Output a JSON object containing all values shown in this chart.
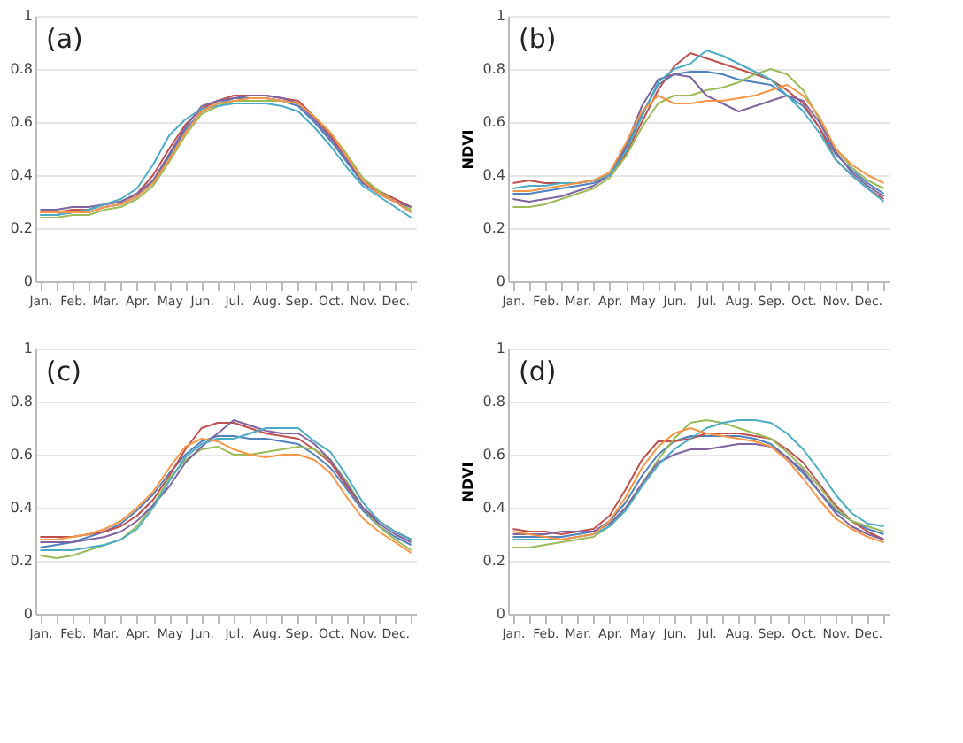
{
  "chart_data": [
    {
      "type": "line",
      "annotations": [
        "(a)"
      ],
      "ylim": [
        0,
        1
      ],
      "yticks": [
        0,
        0.2,
        0.4,
        0.6,
        0.8,
        1
      ],
      "grid": "y",
      "line_style": "solid",
      "categories": [
        "Jan.",
        null,
        "Feb.",
        null,
        "Mar.",
        null,
        "Apr.",
        null,
        "May",
        null,
        "Jun.",
        null,
        "Jul.",
        null,
        "Aug.",
        null,
        "Sep.",
        null,
        "Oct.",
        null,
        "Nov.",
        null,
        "Dec.",
        null
      ],
      "series": [
        {
          "color": "#4f81bd",
          "values": [
            0.25,
            0.25,
            0.26,
            0.26,
            0.28,
            0.29,
            0.32,
            0.38,
            0.47,
            0.57,
            0.64,
            0.67,
            0.69,
            0.69,
            0.69,
            0.68,
            0.66,
            0.6,
            0.53,
            0.45,
            0.37,
            0.33,
            0.3,
            0.26
          ]
        },
        {
          "color": "#c0504d",
          "values": [
            0.26,
            0.26,
            0.27,
            0.27,
            0.29,
            0.3,
            0.33,
            0.4,
            0.5,
            0.59,
            0.65,
            0.68,
            0.7,
            0.7,
            0.7,
            0.69,
            0.68,
            0.62,
            0.55,
            0.46,
            0.38,
            0.34,
            0.31,
            0.28
          ]
        },
        {
          "color": "#9bbb59",
          "values": [
            0.24,
            0.24,
            0.25,
            0.25,
            0.27,
            0.28,
            0.31,
            0.36,
            0.45,
            0.55,
            0.63,
            0.66,
            0.68,
            0.68,
            0.68,
            0.68,
            0.67,
            0.62,
            0.56,
            0.48,
            0.39,
            0.34,
            0.3,
            0.27
          ]
        },
        {
          "color": "#8064a2",
          "values": [
            0.27,
            0.27,
            0.28,
            0.28,
            0.29,
            0.3,
            0.33,
            0.38,
            0.48,
            0.58,
            0.66,
            0.68,
            0.69,
            0.7,
            0.7,
            0.69,
            0.67,
            0.61,
            0.54,
            0.46,
            0.37,
            0.33,
            0.3,
            0.28
          ]
        },
        {
          "color": "#4bacc6",
          "values": [
            0.25,
            0.25,
            0.26,
            0.27,
            0.29,
            0.31,
            0.35,
            0.44,
            0.55,
            0.61,
            0.65,
            0.66,
            0.67,
            0.67,
            0.67,
            0.66,
            0.64,
            0.58,
            0.51,
            0.43,
            0.36,
            0.32,
            0.28,
            0.24
          ]
        },
        {
          "color": "#f79646",
          "values": [
            0.26,
            0.26,
            0.26,
            0.26,
            0.28,
            0.29,
            0.32,
            0.37,
            0.46,
            0.56,
            0.64,
            0.67,
            0.68,
            0.69,
            0.69,
            0.68,
            0.67,
            0.62,
            0.56,
            0.47,
            0.38,
            0.33,
            0.3,
            0.26
          ]
        }
      ]
    },
    {
      "type": "line",
      "annotations": [
        "(b)"
      ],
      "ylabel": "NDVI",
      "ylim": [
        0,
        1
      ],
      "yticks": [
        0,
        0.2,
        0.4,
        0.6,
        0.8,
        1
      ],
      "grid": "y",
      "line_style": "solid",
      "categories": [
        "Jan.",
        null,
        "Feb.",
        null,
        "Mar.",
        null,
        "Apr.",
        null,
        "May",
        null,
        "Jun.",
        null,
        "Jul.",
        null,
        "Aug.",
        null,
        "Sep.",
        null,
        "Oct.",
        null,
        "Nov.",
        null,
        "Dec.",
        null
      ],
      "series": [
        {
          "color": "#4f81bd",
          "values": [
            0.33,
            0.33,
            0.34,
            0.35,
            0.36,
            0.37,
            0.4,
            0.5,
            0.63,
            0.74,
            0.78,
            0.79,
            0.79,
            0.78,
            0.76,
            0.75,
            0.74,
            0.7,
            0.66,
            0.58,
            0.48,
            0.42,
            0.37,
            0.33
          ]
        },
        {
          "color": "#c0504d",
          "values": [
            0.37,
            0.38,
            0.37,
            0.37,
            0.37,
            0.38,
            0.4,
            0.48,
            0.6,
            0.72,
            0.81,
            0.86,
            0.84,
            0.82,
            0.8,
            0.78,
            0.76,
            0.72,
            0.67,
            0.58,
            0.46,
            0.4,
            0.35,
            0.31
          ]
        },
        {
          "color": "#9bbb59",
          "values": [
            0.28,
            0.28,
            0.29,
            0.31,
            0.33,
            0.35,
            0.39,
            0.47,
            0.58,
            0.67,
            0.7,
            0.7,
            0.72,
            0.73,
            0.75,
            0.78,
            0.8,
            0.78,
            0.72,
            0.61,
            0.5,
            0.43,
            0.38,
            0.35
          ]
        },
        {
          "color": "#8064a2",
          "values": [
            0.31,
            0.3,
            0.31,
            0.32,
            0.34,
            0.36,
            0.4,
            0.51,
            0.66,
            0.76,
            0.78,
            0.77,
            0.7,
            0.67,
            0.64,
            0.66,
            0.68,
            0.7,
            0.68,
            0.6,
            0.49,
            0.41,
            0.36,
            0.32
          ]
        },
        {
          "color": "#4bacc6",
          "values": [
            0.35,
            0.36,
            0.36,
            0.37,
            0.37,
            0.38,
            0.4,
            0.49,
            0.62,
            0.75,
            0.8,
            0.82,
            0.87,
            0.85,
            0.82,
            0.79,
            0.76,
            0.7,
            0.64,
            0.56,
            0.46,
            0.4,
            0.35,
            0.3
          ]
        },
        {
          "color": "#f79646",
          "values": [
            0.34,
            0.34,
            0.35,
            0.36,
            0.37,
            0.38,
            0.41,
            0.52,
            0.64,
            0.7,
            0.67,
            0.67,
            0.68,
            0.68,
            0.69,
            0.7,
            0.72,
            0.74,
            0.7,
            0.62,
            0.5,
            0.44,
            0.4,
            0.37
          ]
        }
      ]
    },
    {
      "type": "line",
      "annotations": [
        "(c)"
      ],
      "ylim": [
        0,
        1
      ],
      "yticks": [
        0,
        0.2,
        0.4,
        0.6,
        0.8,
        1
      ],
      "grid": "y",
      "line_style": "solid",
      "categories": [
        "Jan.",
        null,
        "Feb.",
        null,
        "Mar.",
        null,
        "Apr.",
        null,
        "May",
        null,
        "Jun.",
        null,
        "Jul.",
        null,
        "Aug.",
        null,
        "Sep.",
        null,
        "Oct.",
        null,
        "Nov.",
        null,
        "Dec.",
        null
      ],
      "series": [
        {
          "color": "#4f81bd",
          "values": [
            0.25,
            0.26,
            0.27,
            0.29,
            0.31,
            0.34,
            0.39,
            0.45,
            0.53,
            0.6,
            0.65,
            0.67,
            0.67,
            0.66,
            0.66,
            0.65,
            0.64,
            0.6,
            0.55,
            0.47,
            0.39,
            0.33,
            0.29,
            0.26
          ]
        },
        {
          "color": "#c0504d",
          "values": [
            0.29,
            0.29,
            0.29,
            0.3,
            0.31,
            0.33,
            0.37,
            0.43,
            0.52,
            0.62,
            0.7,
            0.72,
            0.72,
            0.7,
            0.68,
            0.67,
            0.66,
            0.62,
            0.57,
            0.48,
            0.4,
            0.35,
            0.31,
            0.28
          ]
        },
        {
          "color": "#9bbb59",
          "values": [
            0.22,
            0.21,
            0.22,
            0.24,
            0.26,
            0.28,
            0.33,
            0.41,
            0.51,
            0.58,
            0.62,
            0.63,
            0.6,
            0.6,
            0.61,
            0.62,
            0.63,
            0.62,
            0.58,
            0.5,
            0.4,
            0.33,
            0.28,
            0.24
          ]
        },
        {
          "color": "#8064a2",
          "values": [
            0.27,
            0.27,
            0.27,
            0.28,
            0.29,
            0.31,
            0.35,
            0.41,
            0.48,
            0.57,
            0.63,
            0.68,
            0.73,
            0.71,
            0.69,
            0.68,
            0.68,
            0.64,
            0.58,
            0.49,
            0.4,
            0.34,
            0.3,
            0.27
          ]
        },
        {
          "color": "#4bacc6",
          "values": [
            0.24,
            0.24,
            0.24,
            0.25,
            0.26,
            0.28,
            0.32,
            0.4,
            0.5,
            0.59,
            0.64,
            0.66,
            0.66,
            0.68,
            0.7,
            0.7,
            0.7,
            0.65,
            0.61,
            0.52,
            0.42,
            0.35,
            0.31,
            0.28
          ]
        },
        {
          "color": "#f79646",
          "values": [
            0.28,
            0.28,
            0.29,
            0.3,
            0.32,
            0.35,
            0.4,
            0.46,
            0.55,
            0.63,
            0.66,
            0.65,
            0.62,
            0.6,
            0.59,
            0.6,
            0.6,
            0.58,
            0.53,
            0.44,
            0.36,
            0.31,
            0.27,
            0.23
          ]
        }
      ]
    },
    {
      "type": "line",
      "annotations": [
        "(d)"
      ],
      "ylabel": "NDVI",
      "ylim": [
        0,
        1
      ],
      "yticks": [
        0,
        0.2,
        0.4,
        0.6,
        0.8,
        1
      ],
      "grid": "y",
      "line_style": "solid",
      "categories": [
        "Jan.",
        null,
        "Feb.",
        null,
        "Mar.",
        null,
        "Apr.",
        null,
        "May",
        null,
        "Jun.",
        null,
        "Jul.",
        null,
        "Aug.",
        null,
        "Sep.",
        null,
        "Oct.",
        null,
        "Nov.",
        null,
        "Dec.",
        null
      ],
      "series": [
        {
          "color": "#4f81bd",
          "values": [
            0.29,
            0.29,
            0.29,
            0.29,
            0.3,
            0.31,
            0.35,
            0.42,
            0.52,
            0.6,
            0.65,
            0.67,
            0.67,
            0.67,
            0.67,
            0.66,
            0.64,
            0.59,
            0.53,
            0.46,
            0.39,
            0.35,
            0.32,
            0.3
          ]
        },
        {
          "color": "#c0504d",
          "values": [
            0.32,
            0.31,
            0.31,
            0.3,
            0.31,
            0.32,
            0.37,
            0.47,
            0.58,
            0.65,
            0.65,
            0.66,
            0.68,
            0.68,
            0.68,
            0.67,
            0.66,
            0.62,
            0.57,
            0.49,
            0.41,
            0.35,
            0.31,
            0.28
          ]
        },
        {
          "color": "#9bbb59",
          "values": [
            0.25,
            0.25,
            0.26,
            0.27,
            0.28,
            0.29,
            0.33,
            0.4,
            0.49,
            0.58,
            0.66,
            0.72,
            0.73,
            0.72,
            0.7,
            0.68,
            0.66,
            0.61,
            0.55,
            0.48,
            0.4,
            0.35,
            0.33,
            0.31
          ]
        },
        {
          "color": "#8064a2",
          "values": [
            0.3,
            0.3,
            0.3,
            0.31,
            0.31,
            0.31,
            0.34,
            0.4,
            0.49,
            0.57,
            0.6,
            0.62,
            0.62,
            0.63,
            0.64,
            0.64,
            0.63,
            0.59,
            0.54,
            0.46,
            0.38,
            0.33,
            0.3,
            0.28
          ]
        },
        {
          "color": "#4bacc6",
          "values": [
            0.28,
            0.28,
            0.28,
            0.28,
            0.29,
            0.3,
            0.33,
            0.39,
            0.48,
            0.56,
            0.62,
            0.66,
            0.7,
            0.72,
            0.73,
            0.73,
            0.72,
            0.68,
            0.62,
            0.54,
            0.45,
            0.38,
            0.34,
            0.33
          ]
        },
        {
          "color": "#f79646",
          "values": [
            0.31,
            0.3,
            0.29,
            0.28,
            0.29,
            0.3,
            0.35,
            0.44,
            0.55,
            0.63,
            0.68,
            0.7,
            0.68,
            0.67,
            0.66,
            0.65,
            0.63,
            0.58,
            0.51,
            0.43,
            0.36,
            0.32,
            0.29,
            0.27
          ]
        }
      ]
    }
  ]
}
